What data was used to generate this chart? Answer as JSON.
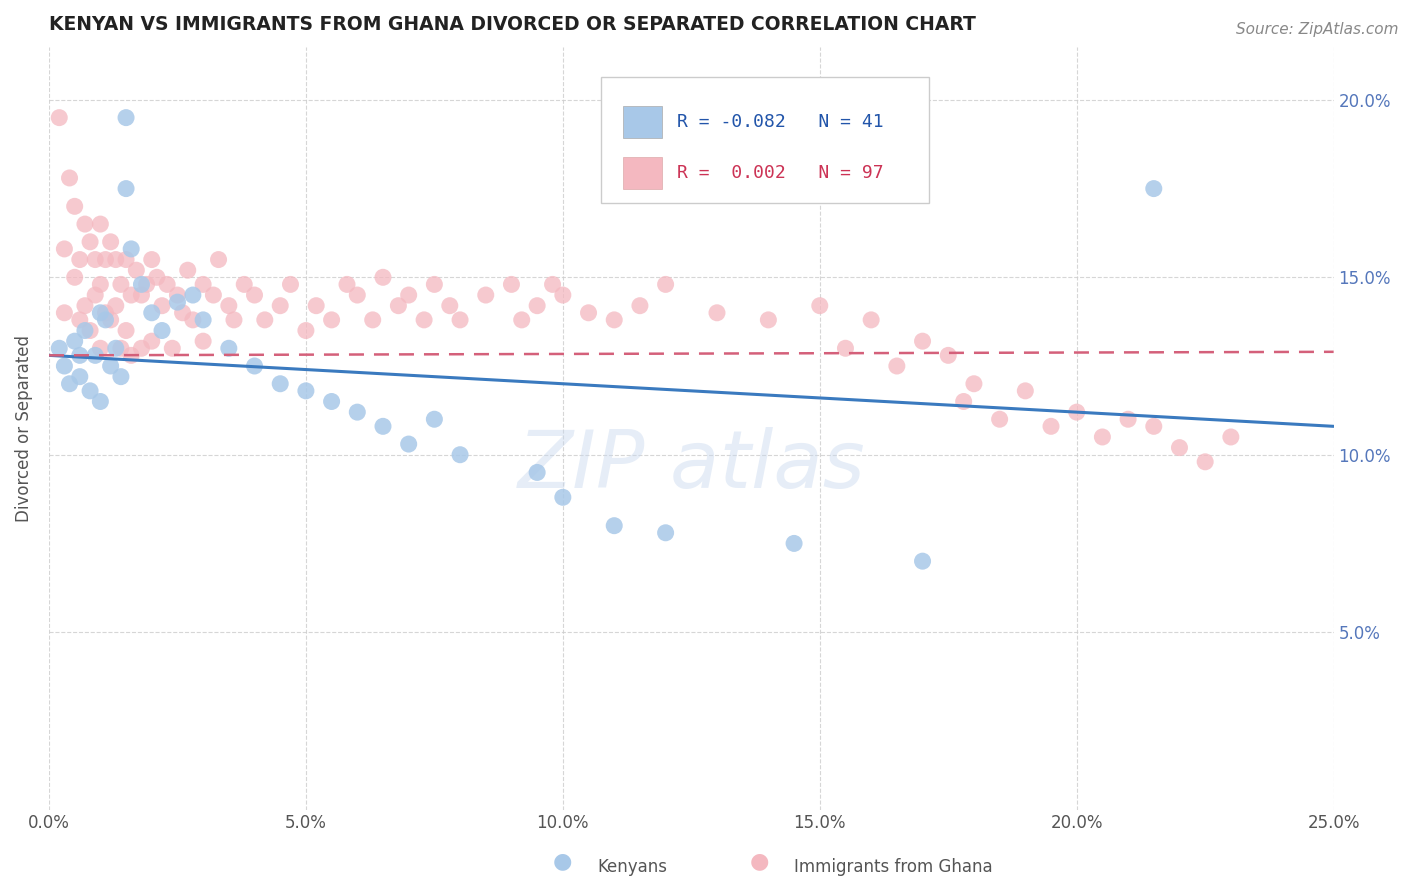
{
  "title": "KENYAN VS IMMIGRANTS FROM GHANA DIVORCED OR SEPARATED CORRELATION CHART",
  "source_text": "Source: ZipAtlas.com",
  "ylabel": "Divorced or Separated",
  "xlabel_kenyans": "Kenyans",
  "xlabel_ghana": "Immigrants from Ghana",
  "x_min": 0.0,
  "x_max": 0.25,
  "y_min": 0.0,
  "y_max": 0.215,
  "x_ticks": [
    0.0,
    0.05,
    0.1,
    0.15,
    0.2,
    0.25
  ],
  "x_tick_labels": [
    "0.0%",
    "5.0%",
    "10.0%",
    "15.0%",
    "20.0%",
    "25.0%"
  ],
  "y_ticks": [
    0.05,
    0.1,
    0.15,
    0.2
  ],
  "y_tick_labels": [
    "5.0%",
    "10.0%",
    "15.0%",
    "20.0%"
  ],
  "kenyan_color": "#a8c8e8",
  "ghana_color": "#f4b8c0",
  "kenyan_line_color": "#3a7abf",
  "ghana_line_color": "#d4607a",
  "kenyan_R": -0.082,
  "kenyan_N": 41,
  "ghana_R": 0.002,
  "ghana_N": 97,
  "watermark_text": "ZIPatlas",
  "kenyan_trend_x0": 0.0,
  "kenyan_trend_y0": 0.128,
  "kenyan_trend_x1": 0.25,
  "kenyan_trend_y1": 0.108,
  "ghana_trend_x0": 0.0,
  "ghana_trend_y0": 0.128,
  "ghana_trend_x1": 0.25,
  "ghana_trend_y1": 0.129,
  "kenyan_pts_x": [
    0.002,
    0.003,
    0.004,
    0.005,
    0.006,
    0.006,
    0.007,
    0.008,
    0.009,
    0.01,
    0.01,
    0.011,
    0.012,
    0.013,
    0.014,
    0.015,
    0.015,
    0.016,
    0.018,
    0.02,
    0.022,
    0.025,
    0.028,
    0.03,
    0.035,
    0.04,
    0.045,
    0.05,
    0.055,
    0.06,
    0.065,
    0.07,
    0.075,
    0.08,
    0.095,
    0.1,
    0.11,
    0.12,
    0.145,
    0.17,
    0.215
  ],
  "kenyan_pts_y": [
    0.13,
    0.125,
    0.12,
    0.132,
    0.128,
    0.122,
    0.135,
    0.118,
    0.128,
    0.14,
    0.115,
    0.138,
    0.125,
    0.13,
    0.122,
    0.195,
    0.175,
    0.158,
    0.148,
    0.14,
    0.135,
    0.143,
    0.145,
    0.138,
    0.13,
    0.125,
    0.12,
    0.118,
    0.115,
    0.112,
    0.108,
    0.103,
    0.11,
    0.1,
    0.095,
    0.088,
    0.08,
    0.078,
    0.075,
    0.07,
    0.175
  ],
  "ghana_pts_x": [
    0.002,
    0.003,
    0.003,
    0.004,
    0.005,
    0.005,
    0.006,
    0.006,
    0.007,
    0.007,
    0.008,
    0.008,
    0.009,
    0.009,
    0.01,
    0.01,
    0.01,
    0.011,
    0.011,
    0.012,
    0.012,
    0.013,
    0.013,
    0.014,
    0.014,
    0.015,
    0.015,
    0.016,
    0.016,
    0.017,
    0.018,
    0.018,
    0.019,
    0.02,
    0.02,
    0.021,
    0.022,
    0.023,
    0.024,
    0.025,
    0.026,
    0.027,
    0.028,
    0.03,
    0.03,
    0.032,
    0.033,
    0.035,
    0.036,
    0.038,
    0.04,
    0.042,
    0.045,
    0.047,
    0.05,
    0.052,
    0.055,
    0.058,
    0.06,
    0.063,
    0.065,
    0.068,
    0.07,
    0.073,
    0.075,
    0.078,
    0.08,
    0.085,
    0.09,
    0.092,
    0.095,
    0.098,
    0.1,
    0.105,
    0.11,
    0.115,
    0.12,
    0.13,
    0.14,
    0.15,
    0.155,
    0.16,
    0.165,
    0.17,
    0.175,
    0.178,
    0.18,
    0.185,
    0.19,
    0.195,
    0.2,
    0.205,
    0.21,
    0.215,
    0.22,
    0.225,
    0.23
  ],
  "ghana_pts_y": [
    0.195,
    0.158,
    0.14,
    0.178,
    0.17,
    0.15,
    0.155,
    0.138,
    0.165,
    0.142,
    0.16,
    0.135,
    0.155,
    0.145,
    0.165,
    0.148,
    0.13,
    0.155,
    0.14,
    0.16,
    0.138,
    0.155,
    0.142,
    0.148,
    0.13,
    0.155,
    0.135,
    0.145,
    0.128,
    0.152,
    0.145,
    0.13,
    0.148,
    0.155,
    0.132,
    0.15,
    0.142,
    0.148,
    0.13,
    0.145,
    0.14,
    0.152,
    0.138,
    0.148,
    0.132,
    0.145,
    0.155,
    0.142,
    0.138,
    0.148,
    0.145,
    0.138,
    0.142,
    0.148,
    0.135,
    0.142,
    0.138,
    0.148,
    0.145,
    0.138,
    0.15,
    0.142,
    0.145,
    0.138,
    0.148,
    0.142,
    0.138,
    0.145,
    0.148,
    0.138,
    0.142,
    0.148,
    0.145,
    0.14,
    0.138,
    0.142,
    0.148,
    0.14,
    0.138,
    0.142,
    0.13,
    0.138,
    0.125,
    0.132,
    0.128,
    0.115,
    0.12,
    0.11,
    0.118,
    0.108,
    0.112,
    0.105,
    0.11,
    0.108,
    0.102,
    0.098,
    0.105
  ]
}
